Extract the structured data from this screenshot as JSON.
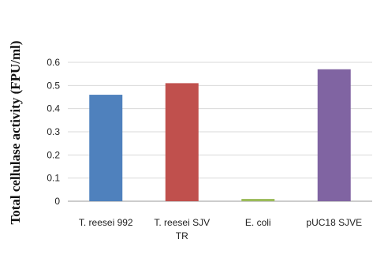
{
  "chart_data": {
    "type": "bar",
    "ylabel": "Total cellulase activity (FPU/ml)",
    "categories": [
      [
        "T. reesei 992"
      ],
      [
        "T. reesei SJV",
        "TR"
      ],
      [
        "E. coli"
      ],
      [
        "pUC18 SJVE"
      ]
    ],
    "values": [
      0.46,
      0.51,
      0.01,
      0.57
    ],
    "colors": [
      "#4f81bd",
      "#c0504d",
      "#9bbb59",
      "#8064a2"
    ],
    "ylim": [
      0,
      0.6
    ],
    "yticks": [
      "0",
      "0.1",
      "0.2",
      "0.3",
      "0.4",
      "0.5",
      "0.6"
    ],
    "ytick_values": [
      0,
      0.1,
      0.2,
      0.3,
      0.4,
      0.5,
      0.6
    ],
    "grid": true,
    "legend": "none"
  }
}
